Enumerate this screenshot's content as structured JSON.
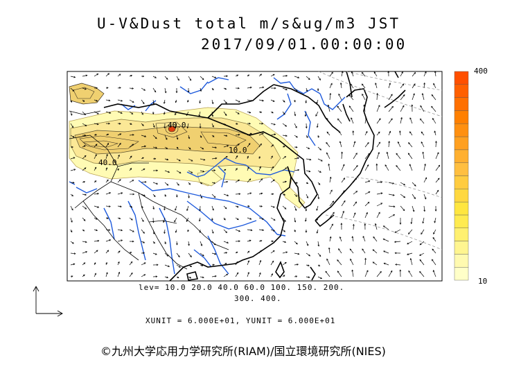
{
  "title": {
    "line1": "U-V&Dust total m/s&ug/m3 JST",
    "line2": "2017/09/01.00:00:00"
  },
  "map": {
    "contour_labels": [
      "40.0",
      "40.0",
      "10.0"
    ],
    "colors": {
      "land_border": "#000000",
      "rivers": "#1e5adc",
      "dust_light": "#fffbb4",
      "dust_mid": "#fbe896",
      "dust_high": "#f0d070",
      "dust_peak": "#e04010",
      "wind_arrows": "#000000"
    }
  },
  "colorbar": {
    "max_label": "400",
    "min_label": "10",
    "colors": [
      "#ffffc8",
      "#fffab0",
      "#fff590",
      "#fff070",
      "#ffeb50",
      "#ffe640",
      "#ffd840",
      "#ffcc40",
      "#ffbf40",
      "#ffb030",
      "#ffa020",
      "#ff9010",
      "#ff8000",
      "#ff7000",
      "#ff6000",
      "#ff5000"
    ]
  },
  "legend": {
    "levels_line1": "lev= 10.0 20.0 40.0 60.0 100. 150. 200.",
    "levels_line2": "300. 400.",
    "units": "XUNIT = 6.000E+01, YUNIT = 6.000E+01"
  },
  "copyright": "©九州大学応用力学研究所(RIAM)/国立環境研究所(NIES)"
}
